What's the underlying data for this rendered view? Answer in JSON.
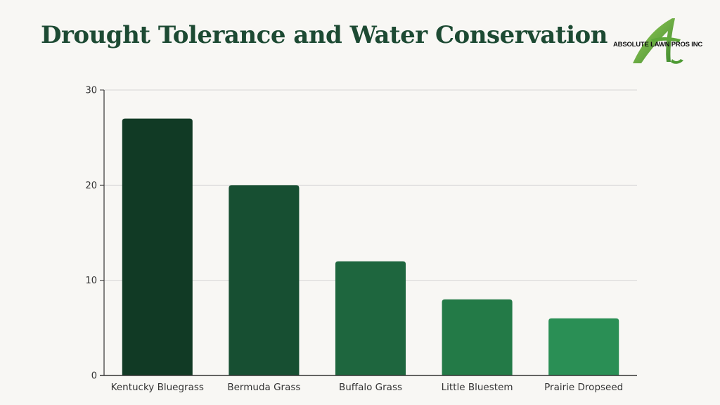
{
  "header": {
    "title": "Drought Tolerance and Water Conservation",
    "logo_text": "ABSOLUTE LAWN PROS INC",
    "logo_letter": "A"
  },
  "chart_data": {
    "type": "bar",
    "title": "Drought Tolerance and Water Conservation",
    "categories": [
      "Kentucky Bluegrass",
      "Bermuda Grass",
      "Buffalo Grass",
      "Little Bluestem",
      "Prairie Dropseed"
    ],
    "values": [
      27,
      20,
      12,
      8,
      6
    ],
    "xlabel": "",
    "ylabel": "",
    "ylim": [
      0,
      30
    ],
    "yticks": [
      0,
      10,
      20,
      30
    ],
    "grid": true,
    "legend": "none",
    "colors": [
      "#113a25",
      "#174f32",
      "#1e663e",
      "#237a47",
      "#2a8f55"
    ]
  },
  "colors": {
    "title": "#1d4a33",
    "background": "#f8f7f4",
    "grid": "#d6d6d6",
    "axis": "#333333"
  }
}
